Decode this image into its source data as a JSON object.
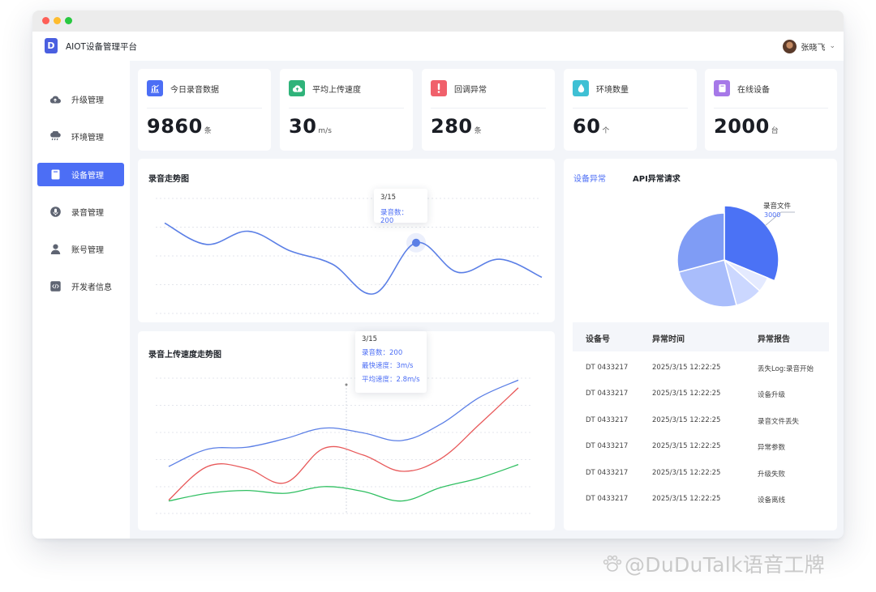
{
  "app": {
    "title": "AIOT设备管理平台",
    "logo_letter": "D"
  },
  "user": {
    "name": "张晓飞"
  },
  "sidebar": {
    "items": [
      {
        "label": "升级管理",
        "icon": "cloud-upload-icon"
      },
      {
        "label": "环境管理",
        "icon": "cloud-rain-icon"
      },
      {
        "label": "设备管理",
        "icon": "device-icon",
        "active": true
      },
      {
        "label": "录音管理",
        "icon": "microphone-icon"
      },
      {
        "label": "账号管理",
        "icon": "user-icon"
      },
      {
        "label": "开发者信息",
        "icon": "code-icon"
      }
    ]
  },
  "stats": [
    {
      "label": "今日录音数据",
      "value": "9860",
      "unit": "条",
      "color": "#4c6ef5",
      "icon": "bar-chart-icon"
    },
    {
      "label": "平均上传速度",
      "value": "30",
      "unit": "m/s",
      "color": "#2fb37a",
      "icon": "cloud-upload-icon"
    },
    {
      "label": "回调异常",
      "value": "280",
      "unit": "条",
      "color": "#f0606b",
      "icon": "alert-icon"
    },
    {
      "label": "环境数量",
      "value": "60",
      "unit": "个",
      "color": "#3fc0d4",
      "icon": "droplet-icon"
    },
    {
      "label": "在线设备",
      "value": "2000",
      "unit": "台",
      "color": "#a678e8",
      "icon": "device-icon"
    }
  ],
  "charts": {
    "recording_trend": {
      "title": "录音走势图",
      "tooltip": {
        "date": "3/15",
        "line1": "录音数：200"
      }
    },
    "upload_trend": {
      "title": "录音上传速度走势图",
      "tooltip": {
        "date": "3/15",
        "line1": "录音数：200",
        "line2": "最快速度：3m/s",
        "line3": "平均速度：2.8m/s"
      }
    },
    "pie": {
      "tab_active": "设备异常",
      "tab_other": "API异常请求",
      "callout_label": "录音文件",
      "callout_value": "3000"
    }
  },
  "chart_data": [
    {
      "type": "line",
      "title": "录音走势图",
      "x": [
        0,
        1,
        2,
        3,
        4,
        5,
        6,
        7,
        8,
        9
      ],
      "series": [
        {
          "values": [
            55,
            42,
            50,
            38,
            30,
            12,
            43,
            25,
            33,
            22
          ]
        }
      ],
      "color": "#5b7fe6"
    },
    {
      "type": "line",
      "title": "录音上传速度走势图",
      "x": [
        0,
        1,
        2,
        3,
        4,
        5,
        6,
        7,
        8,
        9
      ],
      "series": [
        {
          "values": [
            38,
            56,
            58,
            67,
            78,
            73,
            65,
            82,
            110,
            128
          ],
          "color": "#5b7fe6"
        },
        {
          "values": [
            3,
            38,
            36,
            21,
            57,
            50,
            33,
            46,
            82,
            120
          ],
          "color": "#e8595a"
        },
        {
          "values": [
            2,
            10,
            13,
            10,
            17,
            12,
            2,
            16,
            26,
            40
          ],
          "color": "#2fbf61"
        }
      ]
    },
    {
      "type": "pie",
      "slices": [
        {
          "label": "录音文件",
          "value": 3000,
          "color": "#4b72f5"
        },
        {
          "value": 500,
          "color": "#e4eaff"
        },
        {
          "value": 900,
          "color": "#cbd7ff"
        },
        {
          "value": 2400,
          "color": "#a9bdfb"
        },
        {
          "value": 2800,
          "color": "#7f9cf5"
        }
      ]
    }
  ],
  "table": {
    "headers": [
      "设备号",
      "异常时间",
      "异常报告"
    ],
    "rows": [
      [
        "DT 0433217",
        "2025/3/15  12:22:25",
        "丢失Log:录音开始"
      ],
      [
        "DT 0433217",
        "2025/3/15  12:22:25",
        "设备升级"
      ],
      [
        "DT 0433217",
        "2025/3/15  12:22:25",
        "录音文件丢失"
      ],
      [
        "DT 0433217",
        "2025/3/15  12:22:25",
        "异常参数"
      ],
      [
        "DT 0433217",
        "2025/3/15  12:22:25",
        "升级失败"
      ],
      [
        "DT 0433217",
        "2025/3/15  12:22:25",
        "设备离线"
      ]
    ]
  },
  "watermark": {
    "text": "@DuDuTalk语音工牌"
  }
}
